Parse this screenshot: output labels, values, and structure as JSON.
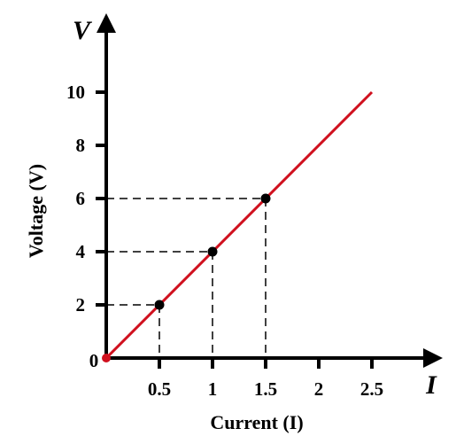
{
  "chart_data": {
    "type": "line",
    "title": "",
    "xlabel": "Current (I)",
    "ylabel": "Voltage (V)",
    "x_axis_symbol": "I",
    "y_axis_symbol": "V",
    "x_ticks": [
      "0.5",
      "1",
      "1.5",
      "2",
      "2.5"
    ],
    "y_ticks": [
      "2",
      "4",
      "6",
      "8",
      "10"
    ],
    "origin_label": "0",
    "xlim": [
      0,
      2.5
    ],
    "ylim": [
      0,
      10
    ],
    "grid": false,
    "series": [
      {
        "x": [
          0,
          2.5
        ],
        "y": [
          0,
          10
        ],
        "color": "#d0101e"
      }
    ],
    "highlight_points": [
      {
        "x": 0.5,
        "y": 2
      },
      {
        "x": 1,
        "y": 4
      },
      {
        "x": 1.5,
        "y": 6
      }
    ],
    "colors": {
      "line": "#d0101e",
      "axis": "#000000",
      "points": "#000000",
      "origin_point": "#d0101e"
    }
  }
}
